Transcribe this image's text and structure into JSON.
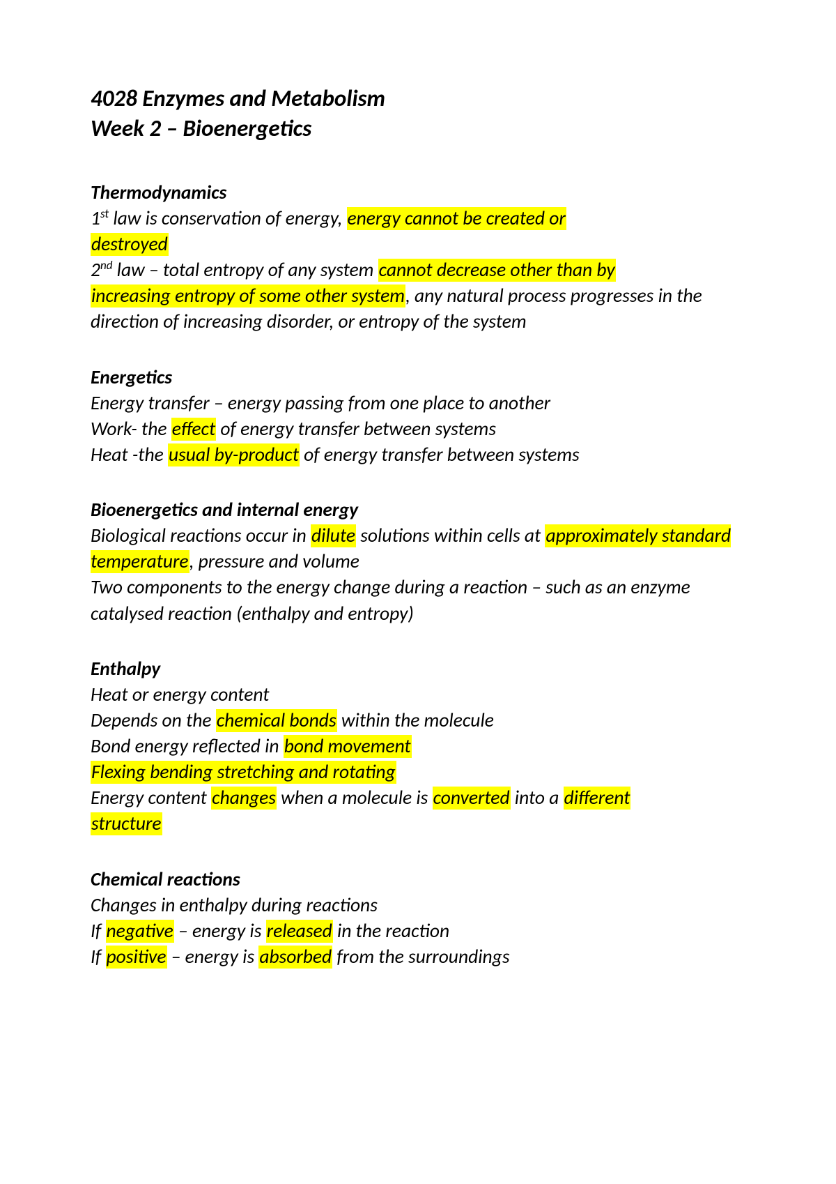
{
  "title_line1": "4028 Enzymes and Metabolism",
  "title_line2": "Week 2 – Bioenergetics",
  "sections": {
    "thermo": {
      "heading": "Thermodynamics",
      "law1_pre_sup": "1",
      "law1_sup": "st",
      "law1_text1": " law is conservation of energy, ",
      "law1_hl1": "energy cannot be created or ",
      "law1_hl2": "destroyed",
      "law2_pre_sup": "2",
      "law2_sup": "nd",
      "law2_text1": " law – total entropy of any system ",
      "law2_hl1": "cannot decrease other than by ",
      "law2_hl2": "increasing entropy of some other system",
      "law2_text2": ", any natural process progresses in the direction of increasing disorder, or entropy of the system"
    },
    "energetics": {
      "heading": "Energetics",
      "line1": "Energy transfer – energy passing from one place to another",
      "line2_pre": "Work- the ",
      "line2_hl": "effect",
      "line2_post": " of energy transfer between systems",
      "line3_pre": "Heat -the ",
      "line3_hl": "usual by-product",
      "line3_post": " of energy transfer between systems"
    },
    "bio": {
      "heading": "Bioenergetics and internal energy",
      "line1_pre": "Biological reactions occur in ",
      "line1_hl1": "dilute",
      "line1_mid": " solutions within cells at ",
      "line1_hl2": "approximately standard temperature",
      "line1_post": ", pressure and volume",
      "line2": "Two components to the energy change during a reaction – such as an enzyme catalysed reaction (enthalpy and entropy)"
    },
    "enthalpy": {
      "heading": "Enthalpy",
      "line1": "Heat or energy content",
      "line2_pre": "Depends on the ",
      "line2_hl": "chemical bonds",
      "line2_post": " within the molecule",
      "line3_pre": "Bond energy reflected in ",
      "line3_hl": "bond movement",
      "line4_hl": "Flexing bending stretching and rotating",
      "line5_pre": "Energy content ",
      "line5_hl1": "changes",
      "line5_mid1": " when a molecule is ",
      "line5_hl2": "converted",
      "line5_mid2": " into a ",
      "line5_hl3": "different ",
      "line5_hl4": "structure"
    },
    "chem": {
      "heading": "Chemical reactions",
      "line1": "Changes in enthalpy during reactions",
      "line2_pre": "If ",
      "line2_hl1": "negative",
      "line2_mid": " – energy is ",
      "line2_hl2": "released",
      "line2_post": " in the reaction",
      "line3_pre": "If ",
      "line3_hl1": "positive",
      "line3_mid": " – energy is ",
      "line3_hl2": "absorbed",
      "line3_post": " from the surroundings"
    }
  }
}
